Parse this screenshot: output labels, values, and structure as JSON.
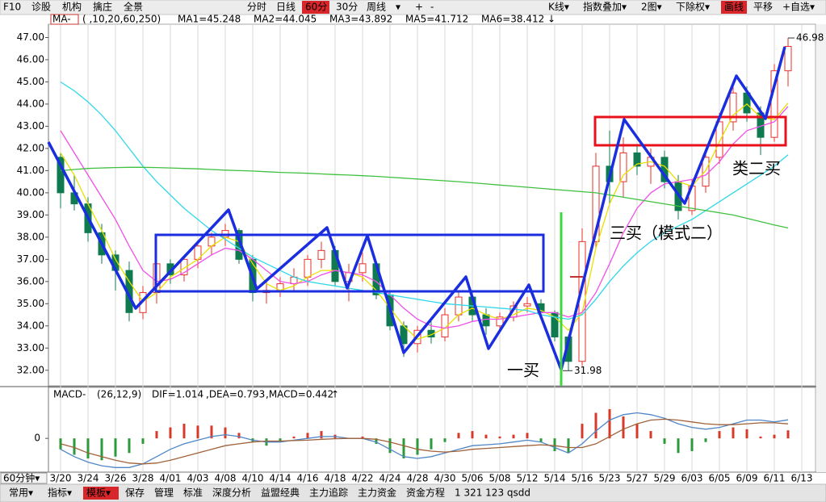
{
  "toolbar": {
    "left": [
      "F10",
      "诊股",
      "机构",
      "擒庄",
      "全景"
    ],
    "periods": [
      {
        "text": "分时"
      },
      {
        "text": "日线"
      },
      {
        "text": "60分",
        "active": true
      },
      {
        "text": "30分"
      },
      {
        "text": "周线"
      },
      {
        "text": "▾"
      },
      {
        "text": "+"
      },
      {
        "text": "-"
      }
    ],
    "right": [
      {
        "text": "K线▾"
      },
      {
        "text": "指数叠加▾"
      },
      {
        "text": "2图▾"
      },
      {
        "text": "下除权▾"
      },
      {
        "text": "画线",
        "active": true
      },
      {
        "text": "平移"
      },
      {
        "text": "+自选▾"
      }
    ]
  },
  "chart_data": [
    {
      "type": "candlestick",
      "indicator": "MA-",
      "params": "( ,10,20,60,250)",
      "categories": [
        "3/20",
        null,
        "3/24",
        null,
        "3/26",
        null,
        "3/28",
        null,
        "4/01",
        null,
        "4/03",
        null,
        "4/08",
        null,
        "4/10",
        null,
        "4/14",
        null,
        "4/16",
        null,
        "4/18",
        null,
        "4/22",
        null,
        "4/24",
        null,
        "4/28",
        null,
        "4/30",
        null,
        "5/06",
        null,
        "5/08",
        null,
        "5/12",
        null,
        "5/14",
        null,
        "5/16",
        null,
        "5/23",
        null,
        "5/27",
        null,
        "5/29",
        null,
        "6/03",
        null,
        "6/05",
        null,
        "6/09",
        null,
        "6/11",
        null,
        "6/13"
      ],
      "open": [
        41.6,
        40.0,
        39.5,
        38.2,
        37.2,
        36.5,
        34.6,
        35.5,
        36.8,
        36.3,
        37.0,
        37.6,
        38.0,
        38.3,
        37.0,
        35.5,
        35.6,
        35.9,
        36.2,
        37.0,
        37.4,
        36.0,
        36.4,
        36.8,
        35.4,
        34.0,
        33.2,
        33.8,
        33.5,
        34.5,
        35.3,
        34.5,
        34.0,
        34.4,
        34.9,
        35.0,
        34.6,
        33.5,
        32.4,
        37.8,
        41.2,
        40.5,
        41.8,
        41.2,
        41.6,
        40.5,
        39.2,
        40.3,
        41.6,
        43.2,
        44.5,
        43.6,
        42.5,
        45.5,
        null
      ],
      "high": [
        41.8,
        40.8,
        39.8,
        38.6,
        37.4,
        36.9,
        35.8,
        37.2,
        37.0,
        37.2,
        37.8,
        38.2,
        38.6,
        38.4,
        37.2,
        36.0,
        36.2,
        36.6,
        37.2,
        37.8,
        37.6,
        36.8,
        37.3,
        36.9,
        35.6,
        34.2,
        34.0,
        34.2,
        34.8,
        35.6,
        35.5,
        34.8,
        34.6,
        35.1,
        35.3,
        35.2,
        34.7,
        33.6,
        38.4,
        41.8,
        42.8,
        42.5,
        42.2,
        42.0,
        41.9,
        40.8,
        40.6,
        41.9,
        43.6,
        45.0,
        44.8,
        43.9,
        45.8,
        46.98,
        null
      ],
      "low": [
        39.3,
        39.2,
        37.8,
        36.8,
        35.6,
        34.2,
        34.3,
        35.0,
        35.9,
        36.0,
        36.6,
        37.2,
        37.6,
        36.8,
        35.1,
        35.0,
        35.3,
        35.6,
        35.8,
        36.6,
        35.8,
        35.1,
        36.0,
        35.2,
        33.8,
        32.6,
        32.8,
        33.2,
        33.3,
        34.2,
        34.2,
        33.6,
        33.7,
        34.2,
        34.6,
        34.4,
        33.3,
        31.98,
        32.2,
        37.5,
        39.5,
        39.8,
        40.8,
        40.4,
        40.2,
        38.8,
        39.0,
        40.0,
        41.3,
        42.8,
        43.2,
        41.7,
        42.3,
        44.8,
        null
      ],
      "close": [
        40.0,
        39.5,
        38.2,
        37.2,
        36.5,
        34.6,
        35.5,
        36.8,
        36.3,
        37.0,
        37.6,
        38.0,
        38.3,
        37.0,
        35.5,
        35.6,
        35.9,
        36.2,
        37.0,
        37.4,
        36.0,
        36.4,
        36.8,
        35.4,
        34.0,
        33.2,
        33.8,
        33.5,
        34.5,
        35.3,
        34.5,
        34.0,
        34.4,
        34.9,
        35.0,
        34.6,
        33.5,
        32.4,
        37.8,
        41.2,
        40.5,
        41.8,
        41.2,
        41.6,
        40.5,
        39.2,
        40.3,
        41.6,
        43.2,
        44.5,
        43.6,
        42.5,
        45.5,
        46.6,
        null
      ],
      "up_color": "#e8302a",
      "down_color": "#0f7a4f",
      "series": [
        {
          "legend": "MA1=45.248",
          "color": "#b0b0b0"
        },
        {
          "legend": "MA2=44.045",
          "color": "#e8e000",
          "values": [
            41.8,
            40.8,
            39.5,
            38.3,
            37.0,
            36.0,
            35.1,
            35.5,
            36.2,
            36.6,
            37.0,
            37.6,
            38.0,
            37.8,
            36.8,
            35.9,
            35.6,
            35.8,
            36.2,
            36.5,
            36.5,
            36.4,
            36.2,
            35.6,
            34.8,
            34.0,
            33.4,
            33.6,
            33.9,
            34.5,
            34.8,
            34.5,
            34.3,
            34.5,
            34.8,
            34.7,
            34.4,
            33.8,
            34.6,
            37.5,
            39.5,
            40.8,
            41.3,
            41.4,
            41.2,
            40.5,
            40.3,
            41.0,
            42.3,
            43.5,
            44.0,
            43.4,
            43.3,
            44.045,
            null
          ]
        },
        {
          "legend": "MA3=43.892",
          "color": "#f050e8",
          "values": [
            42.8,
            41.8,
            40.8,
            39.8,
            38.8,
            37.6,
            36.5,
            36.0,
            36.1,
            36.4,
            36.8,
            37.2,
            37.5,
            37.4,
            37.0,
            36.5,
            36.0,
            35.9,
            36.0,
            36.3,
            36.5,
            36.4,
            36.3,
            36.0,
            35.4,
            34.8,
            34.3,
            34.0,
            33.9,
            34.0,
            34.2,
            34.3,
            34.3,
            34.4,
            34.5,
            34.6,
            34.6,
            34.4,
            34.6,
            35.5,
            36.8,
            38.2,
            39.3,
            40.0,
            40.4,
            40.5,
            40.6,
            40.8,
            41.4,
            42.2,
            42.8,
            43.0,
            43.2,
            43.892,
            null
          ]
        },
        {
          "legend": "MA5=41.712",
          "color": "#30d8e8",
          "values": [
            45.0,
            44.6,
            44.1,
            43.5,
            42.8,
            42.0,
            41.2,
            40.5,
            39.9,
            39.3,
            38.8,
            38.3,
            37.9,
            37.5,
            37.1,
            36.8,
            36.5,
            36.2,
            36.0,
            35.9,
            35.8,
            35.7,
            35.6,
            35.5,
            35.4,
            35.3,
            35.2,
            35.1,
            35.0,
            34.95,
            34.9,
            34.85,
            34.8,
            34.75,
            34.7,
            34.5,
            34.4,
            34.3,
            34.5,
            35.2,
            36.0,
            36.7,
            37.3,
            37.8,
            38.2,
            38.5,
            38.8,
            39.2,
            39.6,
            40.0,
            40.4,
            40.8,
            41.2,
            41.712,
            null
          ]
        },
        {
          "legend": "MA6=38.412 ↓",
          "color": "#40c040",
          "values": [
            41.0,
            41.05,
            41.1,
            41.12,
            41.14,
            41.15,
            41.15,
            41.14,
            41.12,
            41.1,
            41.08,
            41.05,
            41.02,
            41.0,
            40.98,
            40.95,
            40.92,
            40.9,
            40.88,
            40.85,
            40.82,
            40.8,
            40.77,
            40.74,
            40.7,
            40.66,
            40.62,
            40.58,
            40.54,
            40.5,
            40.45,
            40.4,
            40.35,
            40.3,
            40.25,
            40.2,
            40.15,
            40.1,
            40.05,
            40.0,
            39.9,
            39.8,
            39.7,
            39.6,
            39.5,
            39.4,
            39.3,
            39.2,
            39.1,
            39.0,
            38.85,
            38.7,
            38.55,
            38.412,
            null
          ]
        }
      ],
      "ylim": [
        31.3,
        47.6
      ],
      "yticks": [
        {
          "value": 32,
          "label": "32.00"
        },
        {
          "value": 33,
          "label": "33.00"
        },
        {
          "value": 34,
          "label": "34.00"
        },
        {
          "value": 35,
          "label": "35.00"
        },
        {
          "value": 36,
          "label": "36.00"
        },
        {
          "value": 37,
          "label": "37.00"
        },
        {
          "value": 38,
          "label": "38.00"
        },
        {
          "value": 39,
          "label": "39.00"
        },
        {
          "value": 40,
          "label": "40.00"
        },
        {
          "value": 41,
          "label": "41.00"
        },
        {
          "value": 42,
          "label": "42.00"
        },
        {
          "value": 43,
          "label": "43.00"
        },
        {
          "value": 44,
          "label": "44.00"
        },
        {
          "value": 45,
          "label": "45.00"
        },
        {
          "value": 46,
          "label": "46.00"
        },
        {
          "value": 47,
          "label": "47.00"
        }
      ],
      "grid": false,
      "annotations": {
        "max": 46.98,
        "min": 31.98,
        "notes": [
          "一买",
          "三买（模式二）",
          "类二买"
        ]
      }
    },
    {
      "type": "macd",
      "indicator": "MACD-",
      "params": "(26,12,9)",
      "series": [
        {
          "legend": "DIF=1.014",
          "color": "#4f86c6",
          "values": [
            -0.6,
            -1.0,
            -1.3,
            -1.5,
            -1.6,
            -1.6,
            -1.4,
            -1.0,
            -0.6,
            -0.3,
            -0.1,
            0.1,
            0.2,
            0.1,
            -0.1,
            -0.2,
            -0.2,
            -0.1,
            0.0,
            0.1,
            0.1,
            0.0,
            0.0,
            -0.2,
            -0.6,
            -1.0,
            -1.1,
            -1.0,
            -0.8,
            -0.6,
            -0.4,
            -0.35,
            -0.3,
            -0.2,
            -0.1,
            -0.2,
            -0.5,
            -0.8,
            -0.3,
            0.4,
            1.0,
            1.3,
            1.4,
            1.3,
            1.1,
            0.8,
            0.6,
            0.5,
            0.6,
            0.8,
            1.0,
            1.0,
            0.9,
            1.014,
            null
          ]
        },
        {
          "legend": ",DEA=0.793",
          "color": "#a0623a",
          "values": [
            -0.3,
            -0.5,
            -0.8,
            -1.0,
            -1.2,
            -1.35,
            -1.4,
            -1.35,
            -1.2,
            -1.0,
            -0.8,
            -0.6,
            -0.4,
            -0.3,
            -0.2,
            -0.15,
            -0.15,
            -0.12,
            -0.1,
            -0.05,
            -0.02,
            0.0,
            0.0,
            -0.05,
            -0.2,
            -0.4,
            -0.6,
            -0.7,
            -0.75,
            -0.7,
            -0.6,
            -0.55,
            -0.5,
            -0.45,
            -0.4,
            -0.35,
            -0.4,
            -0.5,
            -0.5,
            -0.3,
            0.1,
            0.5,
            0.8,
            1.0,
            1.05,
            1.0,
            0.9,
            0.8,
            0.75,
            0.75,
            0.8,
            0.85,
            0.85,
            0.793,
            null
          ]
        }
      ],
      "histogram": {
        "legend": ",MACD=0.442",
        "color": "#1a9a3a",
        "values": [
          -0.6,
          -0.9,
          -1.1,
          -1.2,
          -1.0,
          -0.8,
          -0.3,
          0.4,
          0.6,
          0.8,
          0.7,
          0.7,
          0.6,
          0.3,
          -0.2,
          -0.4,
          -0.2,
          0.1,
          0.3,
          0.4,
          0.2,
          0.0,
          0.1,
          -0.3,
          -0.8,
          -1.1,
          -0.9,
          -0.6,
          -0.2,
          0.3,
          0.4,
          0.2,
          0.1,
          0.2,
          0.3,
          -0.2,
          -0.7,
          -0.8,
          0.8,
          1.4,
          1.6,
          1.2,
          0.8,
          0.4,
          -0.3,
          -0.8,
          -0.7,
          -0.2,
          0.4,
          0.6,
          0.5,
          0.1,
          0.2,
          0.442,
          null
        ]
      },
      "trend": "↑",
      "up_color": "#d83a2a",
      "down_color": "#2a9a3a",
      "ylim": [
        -1.85,
        2.35
      ],
      "yticks": [
        0
      ]
    }
  ],
  "bottom": {
    "period": "60分钟▾",
    "tabs": [
      {
        "text": "常用▾"
      },
      {
        "text": "指标▾"
      },
      {
        "text": "模板▾",
        "active": true
      },
      {
        "text": "保存"
      },
      {
        "text": "管理"
      },
      {
        "text": "标准"
      },
      {
        "text": "深度分析"
      },
      {
        "text": "益盟经典"
      },
      {
        "text": "主力追踪"
      },
      {
        "text": "主力资金"
      },
      {
        "text": "资金方程"
      },
      {
        "text": "1 321 123 qsdd"
      }
    ]
  }
}
